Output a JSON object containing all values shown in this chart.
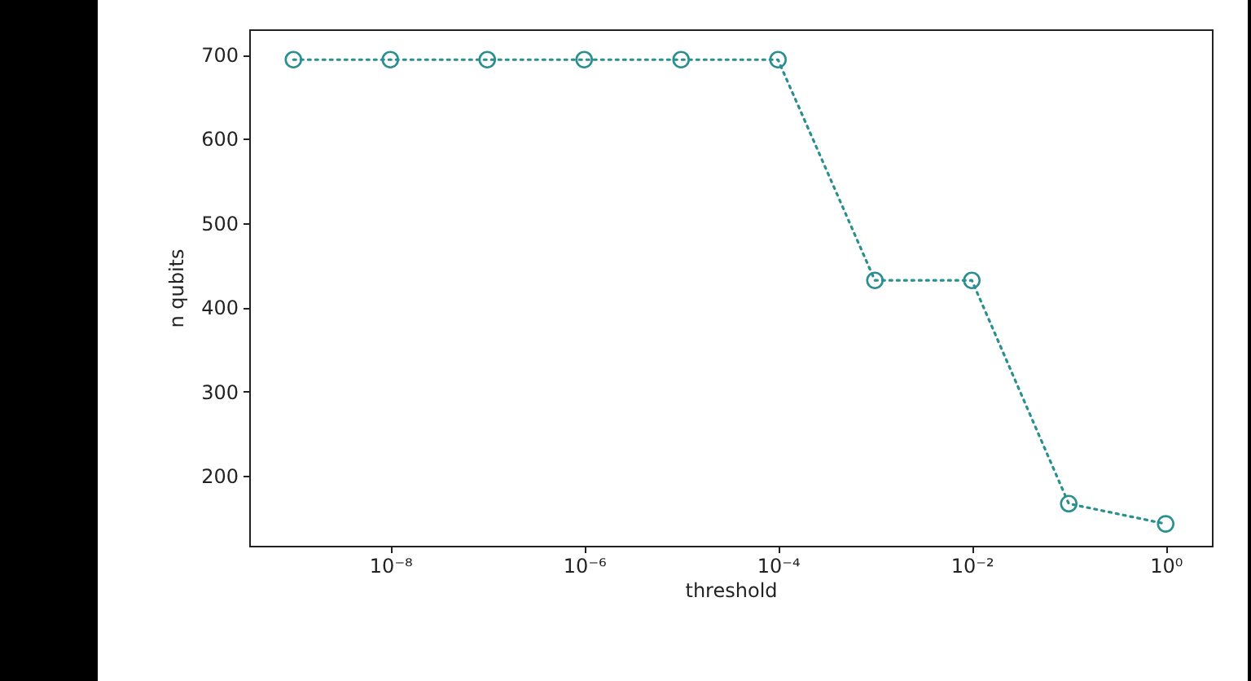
{
  "chart_data": {
    "type": "line",
    "xlabel": "threshold",
    "ylabel": "n qubits",
    "log": "x",
    "marker": "circle",
    "line_style": "dotted",
    "grid": false,
    "x": [
      1e-09,
      1e-08,
      1e-07,
      1e-06,
      1e-05,
      0.0001,
      0.001,
      0.01,
      0.1,
      1
    ],
    "series": [
      {
        "color": "#2a8f8f",
        "values": [
          694,
          694,
          694,
          694,
          694,
          694,
          432,
          432,
          167,
          143
        ]
      }
    ],
    "xlim": [
      3.5e-10,
      3
    ],
    "ylim": [
      117,
      730
    ],
    "xticks": [
      {
        "value": 1e-08,
        "label": "10⁻⁸"
      },
      {
        "value": 1e-06,
        "label": "10⁻⁶"
      },
      {
        "value": 0.0001,
        "label": "10⁻⁴"
      },
      {
        "value": 0.01,
        "label": "10⁻²"
      },
      {
        "value": 1,
        "label": "10⁰"
      }
    ],
    "yticks": [
      200,
      300,
      400,
      500,
      600,
      700
    ]
  }
}
